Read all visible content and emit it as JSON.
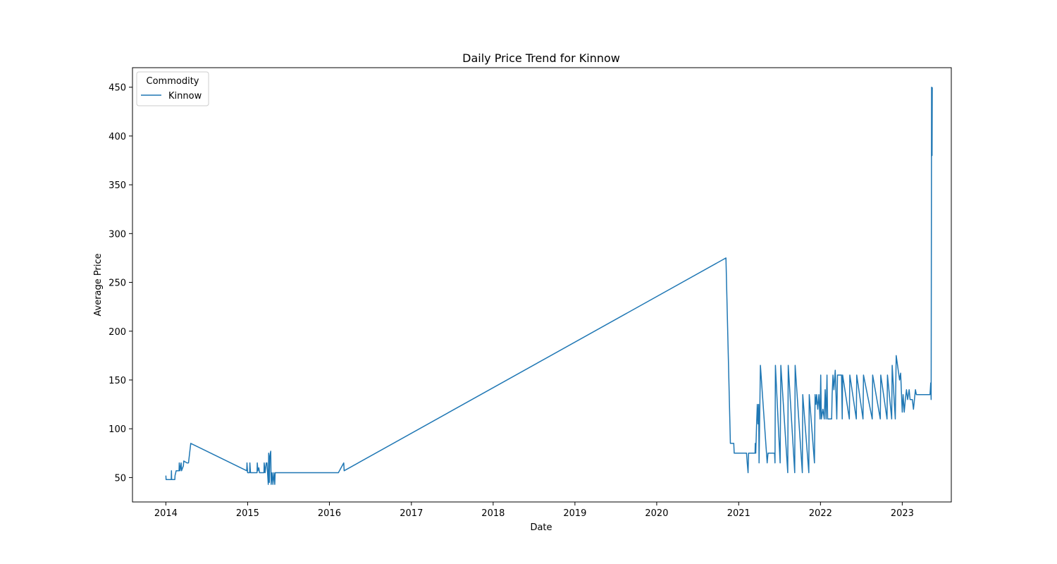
{
  "chart_data": {
    "type": "line",
    "title": "Daily Price Trend for Kinnow",
    "xlabel": "Date",
    "ylabel": "Average Price",
    "xlim": [
      "2013-08-05",
      "2023-08-08"
    ],
    "ylim": [
      25,
      470
    ],
    "x_ticks": [
      "2014",
      "2015",
      "2016",
      "2017",
      "2018",
      "2019",
      "2020",
      "2021",
      "2022",
      "2023"
    ],
    "y_ticks": [
      "50",
      "100",
      "150",
      "200",
      "250",
      "300",
      "350",
      "400",
      "450"
    ],
    "grid": false,
    "legend": {
      "title": "Commodity",
      "placement": "upper-left",
      "entries": [
        "Kinnow"
      ]
    },
    "series": [
      {
        "name": "Kinnow",
        "color": "#1f77b4",
        "points": [
          [
            "2014-01-01",
            52
          ],
          [
            "2014-01-02",
            48
          ],
          [
            "2014-01-25",
            48
          ],
          [
            "2014-01-26",
            57
          ],
          [
            "2014-01-27",
            48
          ],
          [
            "2014-02-10",
            48
          ],
          [
            "2014-02-11",
            52
          ],
          [
            "2014-02-16",
            57
          ],
          [
            "2014-03-01",
            57
          ],
          [
            "2014-03-02",
            65
          ],
          [
            "2014-03-05",
            57
          ],
          [
            "2014-03-10",
            65
          ],
          [
            "2014-03-12",
            57
          ],
          [
            "2014-03-20",
            62
          ],
          [
            "2014-03-22",
            67
          ],
          [
            "2014-04-05",
            65
          ],
          [
            "2014-04-12",
            65
          ],
          [
            "2014-04-22",
            85
          ],
          [
            "2014-12-28",
            57
          ],
          [
            "2014-12-29",
            65
          ],
          [
            "2015-01-01",
            55
          ],
          [
            "2015-01-10",
            55
          ],
          [
            "2015-01-11",
            65
          ],
          [
            "2015-01-14",
            55
          ],
          [
            "2015-02-12",
            55
          ],
          [
            "2015-02-13",
            65
          ],
          [
            "2015-02-16",
            57
          ],
          [
            "2015-02-20",
            60
          ],
          [
            "2015-02-23",
            55
          ],
          [
            "2015-03-15",
            55
          ],
          [
            "2015-03-16",
            65
          ],
          [
            "2015-03-20",
            55
          ],
          [
            "2015-03-25",
            65
          ],
          [
            "2015-03-28",
            65
          ],
          [
            "2015-04-03",
            43
          ],
          [
            "2015-04-05",
            75
          ],
          [
            "2015-04-08",
            45
          ],
          [
            "2015-04-10",
            72
          ],
          [
            "2015-04-14",
            77
          ],
          [
            "2015-04-16",
            43
          ],
          [
            "2015-04-20",
            55
          ],
          [
            "2015-04-24",
            43
          ],
          [
            "2015-04-28",
            55
          ],
          [
            "2015-05-02",
            43
          ],
          [
            "2015-05-04",
            55
          ],
          [
            "2016-02-10",
            55
          ],
          [
            "2016-03-05",
            65
          ],
          [
            "2016-03-07",
            57
          ],
          [
            "2020-11-05",
            275
          ],
          [
            "2020-11-25",
            85
          ],
          [
            "2020-12-10",
            85
          ],
          [
            "2020-12-12",
            75
          ],
          [
            "2021-02-05",
            75
          ],
          [
            "2021-02-08",
            65
          ],
          [
            "2021-02-12",
            55
          ],
          [
            "2021-02-14",
            75
          ],
          [
            "2021-03-15",
            75
          ],
          [
            "2021-03-16",
            85
          ],
          [
            "2021-03-18",
            75
          ],
          [
            "2021-03-22",
            105
          ],
          [
            "2021-03-25",
            125
          ],
          [
            "2021-03-28",
            105
          ],
          [
            "2021-03-31",
            125
          ],
          [
            "2021-04-02",
            65
          ],
          [
            "2021-04-08",
            165
          ],
          [
            "2021-05-08",
            65
          ],
          [
            "2021-05-12",
            75
          ],
          [
            "2021-06-10",
            75
          ],
          [
            "2021-06-12",
            65
          ],
          [
            "2021-06-14",
            165
          ],
          [
            "2021-07-05",
            65
          ],
          [
            "2021-07-08",
            165
          ],
          [
            "2021-08-08",
            55
          ],
          [
            "2021-08-10",
            165
          ],
          [
            "2021-09-08",
            55
          ],
          [
            "2021-09-10",
            165
          ],
          [
            "2021-10-12",
            55
          ],
          [
            "2021-10-14",
            135
          ],
          [
            "2021-11-10",
            55
          ],
          [
            "2021-11-12",
            135
          ],
          [
            "2021-12-05",
            65
          ],
          [
            "2021-12-08",
            135
          ],
          [
            "2021-12-12",
            125
          ],
          [
            "2021-12-15",
            135
          ],
          [
            "2021-12-20",
            120
          ],
          [
            "2021-12-25",
            135
          ],
          [
            "2021-12-30",
            110
          ],
          [
            "2022-01-02",
            155
          ],
          [
            "2022-01-05",
            110
          ],
          [
            "2022-01-12",
            120
          ],
          [
            "2022-01-18",
            110
          ],
          [
            "2022-01-22",
            140
          ],
          [
            "2022-01-26",
            110
          ],
          [
            "2022-01-30",
            155
          ],
          [
            "2022-02-02",
            110
          ],
          [
            "2022-02-20",
            110
          ],
          [
            "2022-02-22",
            135
          ],
          [
            "2022-02-26",
            155
          ],
          [
            "2022-03-02",
            140
          ],
          [
            "2022-03-08",
            160
          ],
          [
            "2022-03-15",
            110
          ],
          [
            "2022-03-18",
            155
          ],
          [
            "2022-04-05",
            155
          ],
          [
            "2022-04-08",
            110
          ],
          [
            "2022-04-10",
            155
          ],
          [
            "2022-05-10",
            110
          ],
          [
            "2022-05-12",
            155
          ],
          [
            "2022-06-10",
            110
          ],
          [
            "2022-06-12",
            155
          ],
          [
            "2022-07-10",
            110
          ],
          [
            "2022-07-12",
            155
          ],
          [
            "2022-08-20",
            110
          ],
          [
            "2022-08-22",
            155
          ],
          [
            "2022-09-25",
            110
          ],
          [
            "2022-09-27",
            155
          ],
          [
            "2022-10-25",
            110
          ],
          [
            "2022-10-27",
            155
          ],
          [
            "2022-11-15",
            110
          ],
          [
            "2022-11-17",
            165
          ],
          [
            "2022-12-01",
            110
          ],
          [
            "2022-12-05",
            175
          ],
          [
            "2022-12-20",
            150
          ],
          [
            "2022-12-25",
            157
          ],
          [
            "2023-01-01",
            117
          ],
          [
            "2023-01-05",
            135
          ],
          [
            "2023-01-10",
            117
          ],
          [
            "2023-01-15",
            130
          ],
          [
            "2023-01-20",
            140
          ],
          [
            "2023-01-25",
            130
          ],
          [
            "2023-02-01",
            140
          ],
          [
            "2023-02-05",
            130
          ],
          [
            "2023-02-15",
            130
          ],
          [
            "2023-02-20",
            120
          ],
          [
            "2023-03-01",
            140
          ],
          [
            "2023-03-05",
            135
          ],
          [
            "2023-05-05",
            135
          ],
          [
            "2023-05-08",
            147
          ],
          [
            "2023-05-10",
            130
          ],
          [
            "2023-05-12",
            450
          ],
          [
            "2023-05-14",
            380
          ],
          [
            "2023-05-15",
            450
          ]
        ]
      }
    ]
  }
}
